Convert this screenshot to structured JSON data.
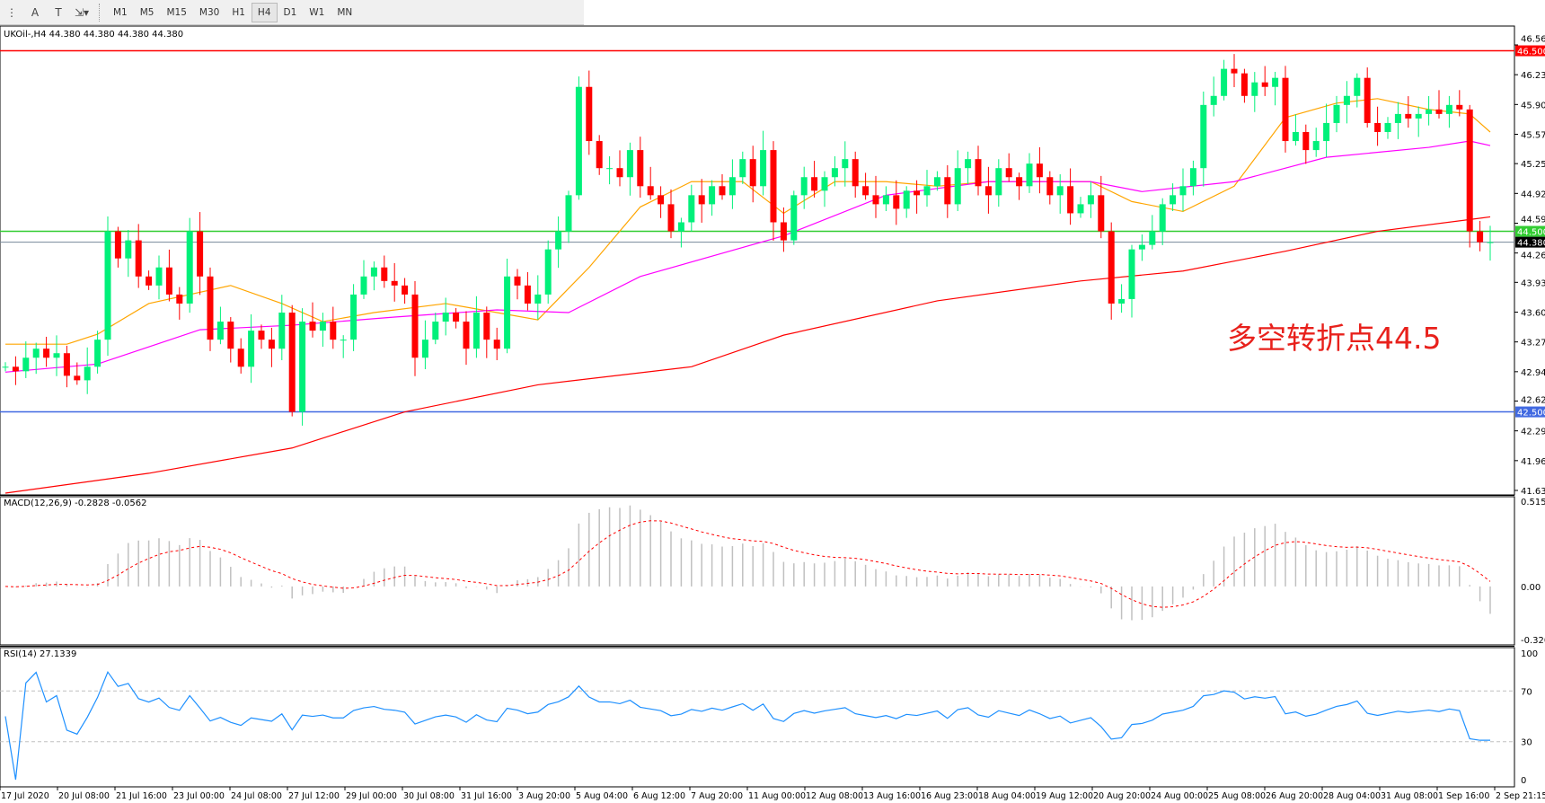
{
  "toolbar": {
    "tools": [
      "fibonacci-fan-icon",
      "text-icon",
      "text-label-icon",
      "arrows-icon"
    ],
    "timeframes": [
      "M1",
      "M5",
      "M15",
      "M30",
      "H1",
      "H4",
      "D1",
      "W1",
      "MN"
    ],
    "active_timeframe": "H4"
  },
  "chart_header": {
    "symbol_line": "UKOil-,H4  44.380 44.380 44.380 44.380"
  },
  "annotation": {
    "text": "多空转折点44.5",
    "color": "#e8211c"
  },
  "indicators": {
    "macd_label": "MACD(12,26,9) -0.2828 -0.0562",
    "rsi_label": "RSI(14) 27.1339"
  },
  "colors": {
    "bull": "#00f07a",
    "bear": "#ff0000",
    "ma_fast": "#ffa500",
    "ma_mid": "#ff00ff",
    "ma_slow": "#ff0000",
    "rsi": "#1e90ff",
    "macd_signal": "#ff0000",
    "macd_hist": "#c0c0c0"
  },
  "chart_data": {
    "type": "candlestick",
    "price_axis_ticks": [
      "46.565",
      "46.235",
      "45.905",
      "45.575",
      "45.250",
      "44.920",
      "44.590",
      "44.260",
      "43.935",
      "43.605",
      "43.275",
      "42.945",
      "42.620",
      "42.290",
      "41.960",
      "41.630"
    ],
    "ylim": [
      41.63,
      46.565
    ],
    "time_labels": [
      "17 Jul 2020",
      "20 Jul 08:00",
      "21 Jul 16:00",
      "23 Jul 00:00",
      "24 Jul 08:00",
      "27 Jul 12:00",
      "29 Jul 00:00",
      "30 Jul 08:00",
      "31 Jul 16:00",
      "3 Aug 20:00",
      "5 Aug 04:00",
      "6 Aug 12:00",
      "7 Aug 20:00",
      "11 Aug 00:00",
      "12 Aug 08:00",
      "13 Aug 16:00",
      "16 Aug 23:00",
      "18 Aug 04:00",
      "19 Aug 12:00",
      "20 Aug 20:00",
      "24 Aug 00:00",
      "25 Aug 08:00",
      "26 Aug 20:00",
      "28 Aug 04:00",
      "31 Aug 08:00",
      "1 Sep 16:00",
      "2 Sep 21:15"
    ],
    "closes": [
      43.0,
      42.95,
      43.1,
      43.2,
      43.1,
      43.15,
      42.9,
      42.85,
      43.0,
      43.3,
      44.5,
      44.2,
      44.4,
      44.0,
      43.9,
      44.1,
      43.8,
      43.7,
      44.5,
      44.0,
      43.3,
      43.5,
      43.2,
      43.0,
      43.4,
      43.3,
      43.2,
      43.6,
      42.5,
      43.5,
      43.4,
      43.5,
      43.3,
      43.3,
      43.8,
      44.0,
      44.1,
      43.95,
      43.9,
      43.8,
      43.1,
      43.3,
      43.5,
      43.6,
      43.5,
      43.2,
      43.6,
      43.3,
      43.2,
      44.0,
      43.9,
      43.7,
      43.8,
      44.3,
      44.5,
      44.9,
      46.1,
      45.5,
      45.2,
      45.2,
      45.1,
      45.4,
      45.0,
      44.9,
      44.8,
      44.5,
      44.6,
      44.9,
      44.8,
      45.0,
      44.9,
      45.1,
      45.3,
      45.0,
      45.4,
      44.6,
      44.4,
      44.9,
      45.1,
      44.95,
      45.1,
      45.2,
      45.3,
      45.0,
      44.9,
      44.8,
      44.9,
      44.75,
      44.95,
      44.9,
      45.0,
      45.1,
      44.8,
      45.2,
      45.3,
      45.0,
      44.9,
      45.2,
      45.1,
      45.0,
      45.25,
      45.1,
      44.9,
      45.0,
      44.7,
      44.8,
      44.9,
      44.5,
      43.7,
      43.75,
      44.3,
      44.35,
      44.5,
      44.8,
      44.9,
      45.0,
      45.2,
      45.9,
      46.0,
      46.3,
      46.25,
      46.0,
      46.15,
      46.1,
      46.2,
      45.5,
      45.6,
      45.4,
      45.5,
      45.7,
      45.9,
      46.0,
      46.2,
      45.7,
      45.6,
      45.7,
      45.8,
      45.75,
      45.8,
      45.85,
      45.8,
      45.9,
      45.85,
      44.5,
      44.38,
      44.38
    ],
    "moving_averages": [
      {
        "color_key": "ma_fast",
        "points": [
          [
            0,
            43.25
          ],
          [
            6,
            43.25
          ],
          [
            9,
            43.36
          ],
          [
            14,
            43.7
          ],
          [
            22,
            43.9
          ],
          [
            27,
            43.7
          ],
          [
            31,
            43.5
          ],
          [
            36,
            43.6
          ],
          [
            43,
            43.7
          ],
          [
            48,
            43.6
          ],
          [
            52,
            43.52
          ],
          [
            57,
            44.1
          ],
          [
            62,
            44.77
          ],
          [
            67,
            45.05
          ],
          [
            72,
            45.05
          ],
          [
            76,
            44.7
          ],
          [
            81,
            45.05
          ],
          [
            86,
            45.05
          ],
          [
            91,
            45.0
          ],
          [
            96,
            45.05
          ],
          [
            106,
            45.05
          ],
          [
            110,
            44.83
          ],
          [
            115,
            44.72
          ],
          [
            120,
            45.0
          ],
          [
            125,
            45.76
          ],
          [
            130,
            45.92
          ],
          [
            134,
            45.97
          ],
          [
            139,
            45.85
          ],
          [
            143,
            45.8
          ],
          [
            145,
            45.6
          ]
        ]
      },
      {
        "color_key": "ma_mid",
        "points": [
          [
            0,
            42.94
          ],
          [
            9,
            43.03
          ],
          [
            19,
            43.41
          ],
          [
            28,
            43.46
          ],
          [
            38,
            43.55
          ],
          [
            48,
            43.63
          ],
          [
            55,
            43.6
          ],
          [
            62,
            44.0
          ],
          [
            76,
            44.45
          ],
          [
            86,
            44.9
          ],
          [
            96,
            45.05
          ],
          [
            106,
            45.05
          ],
          [
            111,
            44.94
          ],
          [
            120,
            45.05
          ],
          [
            129,
            45.32
          ],
          [
            139,
            45.43
          ],
          [
            143,
            45.5
          ],
          [
            145,
            45.45
          ]
        ]
      },
      {
        "color_key": "ma_slow",
        "points": [
          [
            0,
            41.6
          ],
          [
            14,
            41.82
          ],
          [
            28,
            42.1
          ],
          [
            39,
            42.5
          ],
          [
            52,
            42.8
          ],
          [
            67,
            43.0
          ],
          [
            76,
            43.35
          ],
          [
            91,
            43.73
          ],
          [
            105,
            43.95
          ],
          [
            115,
            44.06
          ],
          [
            125,
            44.28
          ],
          [
            134,
            44.5
          ],
          [
            145,
            44.66
          ]
        ]
      }
    ],
    "horizontal_lines": [
      {
        "price": 46.5,
        "label": "46.500",
        "color": "#ff0000"
      },
      {
        "price": 44.5,
        "label": "44.500",
        "color": "#32cd32"
      },
      {
        "price": 44.38,
        "label": "44.380",
        "color": "#778899"
      },
      {
        "price": 42.5,
        "label": "42.500",
        "color": "#4169e1"
      }
    ],
    "macd": {
      "ticks": [
        "0.5151",
        "0.00",
        "-0.3207"
      ],
      "ylim": [
        -0.3207,
        0.5151
      ]
    },
    "rsi": {
      "ticks": [
        "100",
        "70",
        "30",
        "0"
      ],
      "levels": [
        70,
        30
      ]
    }
  }
}
